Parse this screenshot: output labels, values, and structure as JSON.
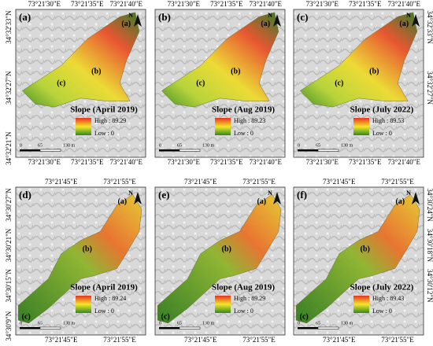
{
  "panels": [
    {
      "label": "(a)",
      "title": "Slope (April 2019)",
      "high": "High : 89.29",
      "low": "Low : 0",
      "scale": [
        "0",
        "65",
        "130 m"
      ],
      "sites": [
        "(a)",
        "(b)",
        "(c)"
      ],
      "north": "N",
      "top_ticks": [
        "73°21'30\"E",
        "73°21'35\"E",
        "73°21'40\"E"
      ],
      "bottom_ticks": [
        "73°21'30\"E",
        "73°21'35\"E",
        "73°21'40\"E"
      ],
      "left_ticks": [
        "34°32'33\"N",
        "34°32'27\"N",
        "34°32'21\"N"
      ],
      "right_ticks": []
    },
    {
      "label": "(b)",
      "title": "Slope (Aug 2019)",
      "high": "High : 89.23",
      "low": "Low : 0",
      "scale": [
        "0",
        "65",
        "130 m"
      ],
      "sites": [
        "(a)",
        "(b)",
        "(c)"
      ],
      "north": "N",
      "top_ticks": [
        "73°21'30\"E",
        "73°21'35\"E",
        "73°21'40\"E"
      ],
      "bottom_ticks": [
        "73°21'30\"E",
        "73°21'35\"E",
        "73°21'40\"E"
      ],
      "left_ticks": [],
      "right_ticks": []
    },
    {
      "label": "(c)",
      "title": "Slope (July 2022)",
      "high": "High : 89.53",
      "low": "Low : 0",
      "scale": [
        "0",
        "65",
        "130 m"
      ],
      "sites": [
        "(a)",
        "(b)",
        "(c)"
      ],
      "north": "N",
      "top_ticks": [
        "73°21'30\"E",
        "73°21'35\"E",
        "73°21'40\"E"
      ],
      "bottom_ticks": [
        "73°21'30\"E",
        "73°21'35\"E",
        "73°21'40\"E"
      ],
      "left_ticks": [],
      "right_ticks": [
        "34°32'33\"N",
        "34°32'27\"N"
      ]
    },
    {
      "label": "(d)",
      "title": "Slope (April 2019)",
      "high": "High : 89.24",
      "low": "Low : 0",
      "scale": [
        "0",
        "65",
        "130 m"
      ],
      "sites": [
        "(a)",
        "(b)",
        "(c)"
      ],
      "north": "N",
      "top_ticks": [
        "73°21'45\"E",
        "73°21'55\"E"
      ],
      "bottom_ticks": [
        "73°21'45\"E",
        "73°21'55\"E"
      ],
      "left_ticks": [
        "34°30'27\"N",
        "34°30'21\"N",
        "34°30'15\"N",
        "34°30'9\"N"
      ],
      "right_ticks": []
    },
    {
      "label": "(e)",
      "title": "Slope (Aug 2019)",
      "high": "High : 89.29",
      "low": "Low : 0",
      "scale": [
        "0",
        "65",
        "130 m"
      ],
      "sites": [
        "(a)",
        "(b)",
        "(c)"
      ],
      "north": "N",
      "top_ticks": [
        "73°21'45\"E",
        "73°21'55\"E"
      ],
      "bottom_ticks": [
        "73°21'45\"E",
        "73°21'55\"E"
      ],
      "left_ticks": [],
      "right_ticks": []
    },
    {
      "label": "(f)",
      "title": "Slope (July 2022)",
      "high": "High : 89.43",
      "low": "Low : 0",
      "scale": [
        "0",
        "65",
        "130 m"
      ],
      "sites": [
        "(a)",
        "(b)",
        "(c)"
      ],
      "north": "N",
      "top_ticks": [
        "73°21'45\"E",
        "73°21'55\"E"
      ],
      "bottom_ticks": [
        "73°21'45\"E",
        "73°21'55\"E"
      ],
      "left_ticks": [],
      "right_ticks": [
        "34°30'24\"N",
        "34°30'18\"N",
        "34°30'12\"N"
      ]
    }
  ]
}
